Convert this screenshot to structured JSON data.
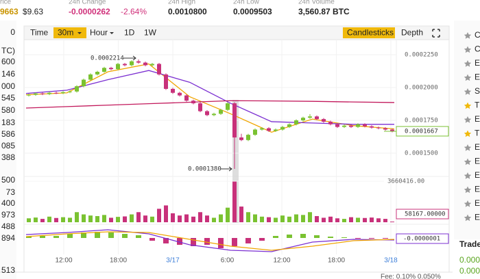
{
  "header": {
    "stats": [
      {
        "label": "rice",
        "value": "9663",
        "sub": "$9.63",
        "color": "#c99400",
        "sub_color": "#222222"
      },
      {
        "label": "24h Change",
        "value": "-0.0000262",
        "sub": "-2.64%",
        "color": "#d0307a",
        "sub_color": "#d0307a"
      },
      {
        "label": "24h High",
        "value": "0.0010800",
        "color": "#222222"
      },
      {
        "label": "24h Low",
        "value": "0.0009503",
        "color": "#222222"
      },
      {
        "label": "24h Volume",
        "value": "3,560.87 BTC",
        "color": "#222222"
      }
    ]
  },
  "toolbar": {
    "left": [
      "Time",
      "30m",
      "Hour",
      "1D",
      "1W"
    ],
    "right": [
      "Candlesticks",
      "Depth"
    ]
  },
  "order_book": [
    "0",
    "TC)",
    "600",
    "146",
    "000",
    "545",
    "580",
    "183",
    "586",
    "085",
    "388",
    "500",
    "73",
    "400",
    "973",
    "488",
    "894",
    "513"
  ],
  "markets": {
    "letters": [
      "C",
      "C",
      "E",
      "E",
      "S",
      "T",
      "E",
      "T",
      "E",
      "E",
      "E",
      "E",
      "E",
      "E"
    ]
  },
  "trade": {
    "title": "Trade",
    "rows": [
      "0.000",
      "0.000"
    ]
  },
  "footer": {
    "fee": "Fee: 0.10%  0.050%"
  },
  "chart_data": {
    "type": "candlestick",
    "up_color": "#7ac231",
    "down_color": "#c8317a",
    "x_labels": [
      "12:00",
      "18:00",
      "3/17",
      "6:00",
      "12:00",
      "18:00",
      "3/18"
    ],
    "open": [
      0.000194,
      0.0001945,
      0.0001955,
      0.000195,
      0.000196,
      0.0001958,
      0.0001965,
      0.000197,
      0.000201,
      0.000206,
      0.00021,
      0.000212,
      0.000215,
      0.000214,
      0.000218,
      0.000217,
      0.00022,
      0.000219,
      0.000217,
      0.000218,
      0.00021,
      0.000199,
      0.000196,
      0.000194,
      0.00019,
      0.000188,
      0.000182,
      0.000179,
      0.00018,
      0.000183,
      0.000188,
      0.000162,
      0.00016,
      0.000164,
      0.000168,
      0.000169,
      0.000167,
      0.000168,
      0.00017,
      0.000172,
      0.000175,
      0.000177,
      0.000178,
      0.000176,
      0.000174,
      0.000172,
      0.00017,
      0.000171,
      0.00017,
      0.000172,
      0.0001705,
      0.0001695,
      0.000169,
      0.000168
    ],
    "high": [
      0.0001953,
      0.0001963,
      0.0001963,
      0.0001968,
      0.0001968,
      0.0001973,
      0.0001978,
      0.0002018,
      0.0002068,
      0.0002108,
      0.0002128,
      0.0002158,
      0.0002158,
      0.0002188,
      0.0002188,
      0.0002208,
      0.0002214,
      0.0002198,
      0.0002188,
      0.0002188,
      0.0002108,
      0.0001998,
      0.0001968,
      0.0001948,
      0.0001908,
      0.0001888,
      0.0001828,
      0.0001808,
      0.0001838,
      0.0001888,
      0.0001888,
      0.0001648,
      0.0001648,
      0.0001688,
      0.0001698,
      0.0001698,
      0.0001688,
      0.0001708,
      0.0001728,
      0.0001758,
      0.0001778,
      0.0001798,
      0.0001788,
      0.0001768,
      0.0001748,
      0.0001728,
      0.0001718,
      0.0001718,
      0.0001728,
      0.0001728,
      0.0001713,
      0.0001703,
      0.0001698,
      0.0001688
    ],
    "low": [
      0.0001932,
      0.0001937,
      0.0001942,
      0.0001942,
      0.000195,
      0.000195,
      0.0001957,
      0.0001962,
      0.0002002,
      0.0002052,
      0.0002092,
      0.0002112,
      0.0002132,
      0.0002132,
      0.0002162,
      0.0002162,
      0.0002182,
      0.0002162,
      0.0002162,
      0.0002092,
      0.0001982,
      0.0001952,
      0.0001932,
      0.0001892,
      0.0001872,
      0.0001812,
      0.0001782,
      0.0001782,
      0.0001792,
      0.0001822,
      0.000138,
      0.0001592,
      0.0001592,
      0.0001632,
      0.0001672,
      0.0001662,
      0.0001662,
      0.0001672,
      0.0001692,
      0.0001712,
      0.0001742,
      0.0001762,
      0.0001752,
      0.0001732,
      0.0001712,
      0.0001692,
      0.0001692,
      0.0001692,
      0.0001692,
      0.0001697,
      0.0001687,
      0.0001682,
      0.0001672,
      0.0001659
    ],
    "close": [
      0.0001945,
      0.0001955,
      0.000195,
      0.000196,
      0.0001958,
      0.0001965,
      0.000197,
      0.000201,
      0.000206,
      0.00021,
      0.000212,
      0.000215,
      0.000214,
      0.000218,
      0.000217,
      0.00022,
      0.000219,
      0.000217,
      0.000218,
      0.00021,
      0.000199,
      0.000196,
      0.000194,
      0.00019,
      0.000188,
      0.000182,
      0.000179,
      0.00018,
      0.000183,
      0.000188,
      0.000162,
      0.00016,
      0.000164,
      0.000168,
      0.000169,
      0.000167,
      0.000168,
      0.00017,
      0.000172,
      0.000175,
      0.000177,
      0.000178,
      0.000176,
      0.000174,
      0.000172,
      0.00017,
      0.000171,
      0.00017,
      0.000172,
      0.0001705,
      0.0001695,
      0.000169,
      0.000168,
      0.0001667
    ],
    "ylim": [
      0.0001323,
      0.0002344
    ],
    "yticks": [
      {
        "value": 0.000225,
        "label": "0.0002250"
      },
      {
        "value": 0.0002,
        "label": "0.0002000"
      },
      {
        "value": 0.000175,
        "label": "0.0001750"
      },
      {
        "value": 0.00015,
        "label": "0.0001500"
      }
    ],
    "max_label": "0.0002214",
    "min_label": {
      "value": 0.000138,
      "label": "0.0001380"
    },
    "last_price": 0.0001667,
    "moving_averages": [
      {
        "color": "#f0a500",
        "values": [
          0.0001945,
          0.000196,
          0.000212,
          0.000218,
          0.000193,
          0.00018,
          0.000166,
          0.000176,
          0.000171,
          0.0001685
        ]
      },
      {
        "color": "#7b2fd1",
        "values": [
          0.0001955,
          0.000198,
          0.000206,
          0.000213,
          0.000204,
          0.000188,
          0.000174,
          0.000173,
          0.000172,
          0.000172
        ]
      },
      {
        "color": "#c2185b",
        "values": [
          0.0001844,
          0.0001855,
          0.0001866,
          0.0001877,
          0.0001888,
          0.00019,
          0.0001898,
          0.0001895,
          0.000189,
          0.0001886
        ]
      }
    ],
    "volume": {
      "values": [
        350000,
        420000,
        300000,
        500000,
        380000,
        450000,
        400000,
        900000,
        700000,
        600000,
        550000,
        650000,
        400000,
        480000,
        520000,
        700000,
        900000,
        600000,
        500000,
        1200000,
        1500000,
        800000,
        600000,
        700000,
        500000,
        900000,
        600000,
        400000,
        700000,
        1300000,
        3660416,
        1400000,
        900000,
        700000,
        500000,
        450000,
        400000,
        600000,
        500000,
        700000,
        650000,
        900000,
        550000,
        400000,
        500000,
        350000,
        300000,
        450000,
        400000,
        380000,
        420000,
        350000,
        300000,
        58167
      ],
      "ylim": [
        0,
        3660416
      ],
      "yticks": [
        {
          "value": 3660416,
          "label": "3660416.00"
        }
      ],
      "last": {
        "value": 58167,
        "label": "58167.00000"
      }
    },
    "macd": {
      "histogram": [
        2e-07,
        3e-07,
        3e-07,
        6e-07,
        8e-07,
        9e-07,
        8e-07,
        6e-07,
        4e-07,
        -4e-07,
        -8e-07,
        -1e-06,
        -1.2e-06,
        -1e-06,
        -1.5e-06,
        -1.2e-06,
        -8e-07,
        -4e-07,
        3e-07,
        5e-07,
        6e-07,
        4e-07,
        2e-07,
        1e-07,
        -1e-07,
        -1e-07,
        -1e-07
      ],
      "lines": [
        {
          "color": "#7b2fd1",
          "values": [
            5e-07,
            8e-07,
            1.2e-06,
            6e-07,
            -1e-06,
            -1.8e-06,
            -2e-06,
            -6e-07,
            -2e-07,
            -3e-07
          ]
        },
        {
          "color": "#f0a500",
          "values": [
            2e-07,
            6e-07,
            9e-07,
            8e-07,
            -2e-07,
            -1.2e-06,
            -1.8e-06,
            -1.2e-06,
            -4e-07,
            -2e-07
          ]
        }
      ],
      "ylim": [
        -3e-06,
        3e-06
      ],
      "last": {
        "value": -1e-07,
        "label": "-0.0000001"
      }
    }
  }
}
